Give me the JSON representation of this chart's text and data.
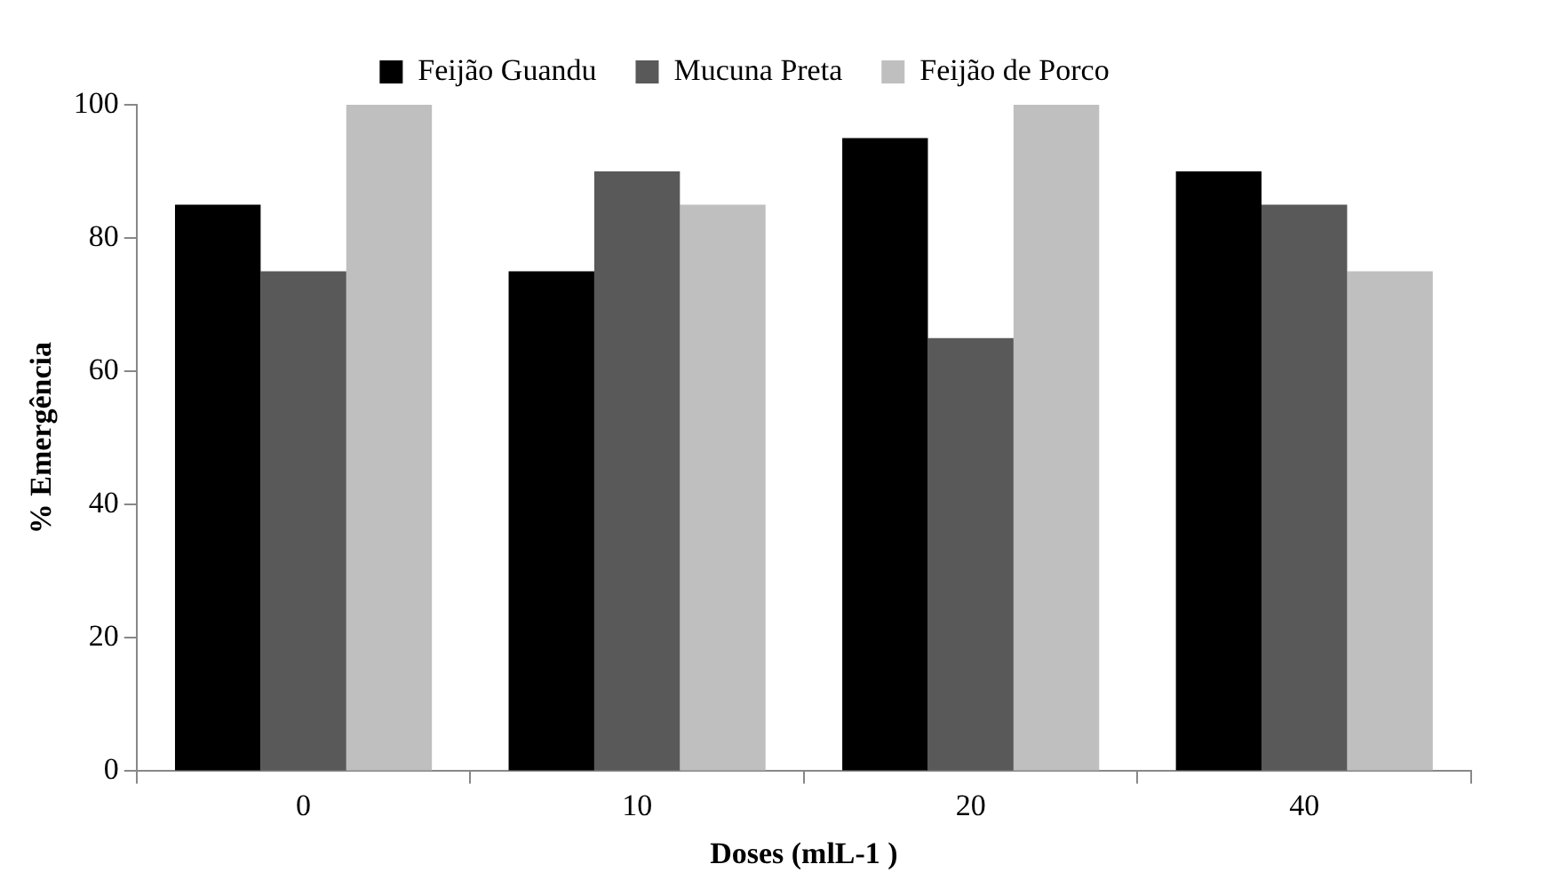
{
  "chart_data": {
    "type": "bar",
    "xlabel": "Doses (mlL-1 )",
    "ylabel": "% Emergência",
    "categories": [
      "0",
      "10",
      "20",
      "40"
    ],
    "series": [
      {
        "name": "Feijão Guandu",
        "color": "#000000",
        "values": [
          85,
          75,
          95,
          90
        ]
      },
      {
        "name": "Mucuna Preta",
        "color": "#595959",
        "values": [
          75,
          90,
          65,
          85
        ]
      },
      {
        "name": "Feijão de Porco",
        "color": "#bfbfbf",
        "values": [
          100,
          85,
          100,
          75
        ]
      }
    ],
    "ylim": [
      0,
      100
    ],
    "yticks": [
      0,
      20,
      40,
      60,
      80,
      100
    ],
    "grid": false,
    "legend": "top"
  }
}
